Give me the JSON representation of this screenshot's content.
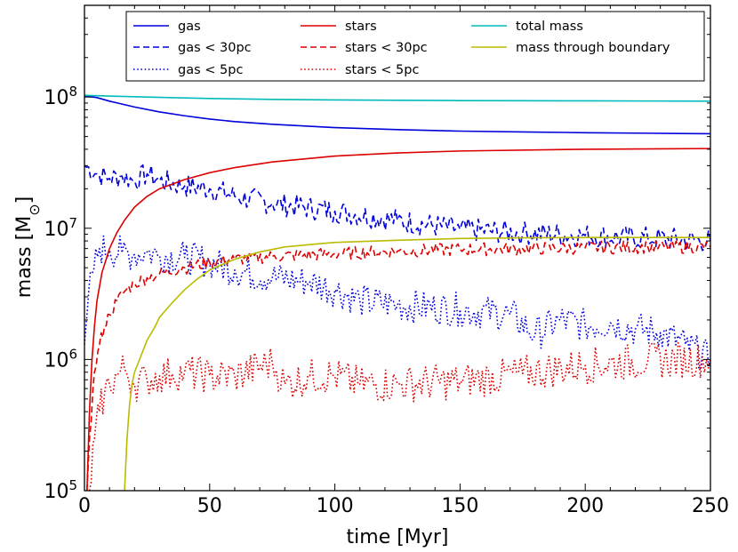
{
  "chart_data": {
    "type": "line",
    "title": "",
    "xlabel": "time [Myr]",
    "ylabel": "mass [M",
    "ylabel_sub": "⊙",
    "ylabel_close": "]",
    "xscale": "linear",
    "yscale": "log",
    "xlim": [
      0,
      250
    ],
    "ylim": [
      100000,
      500000000
    ],
    "x_ticks": [
      {
        "value": 0,
        "label": "0"
      },
      {
        "value": 50,
        "label": "50"
      },
      {
        "value": 100,
        "label": "100"
      },
      {
        "value": 150,
        "label": "150"
      },
      {
        "value": 200,
        "label": "200"
      },
      {
        "value": 250,
        "label": "250"
      }
    ],
    "y_ticks": [
      {
        "value": 100000,
        "base": "10",
        "exp": "5"
      },
      {
        "value": 1000000,
        "base": "10",
        "exp": "6"
      },
      {
        "value": 10000000,
        "base": "10",
        "exp": "7"
      },
      {
        "value": 100000000,
        "base": "10",
        "exp": "8"
      }
    ],
    "legend_position": "top",
    "series": [
      {
        "name": "gas",
        "color": "#0000dd",
        "dash": "solid",
        "noise": 0,
        "x": [
          0,
          5,
          10,
          20,
          30,
          40,
          50,
          60,
          75,
          100,
          125,
          150,
          175,
          200,
          225,
          250
        ],
        "y": [
          102000000.0,
          99000000.0,
          93000000.0,
          84000000.0,
          77000000.0,
          72000000.0,
          68000000.0,
          65000000.0,
          62000000.0,
          58500000.0,
          56500000.0,
          55000000.0,
          54200000.0,
          53500000.0,
          53000000.0,
          52500000.0
        ]
      },
      {
        "name": "gas < 30pc",
        "color": "#0000dd",
        "dash": "dashed",
        "noise": 0.09,
        "x": [
          0,
          5,
          10,
          15,
          20,
          25,
          30,
          40,
          50,
          60,
          75,
          100,
          125,
          150,
          175,
          200,
          225,
          250
        ],
        "y": [
          30000000.0,
          26000000.0,
          24000000.0,
          25000000.0,
          23000000.0,
          26000000.0,
          23000000.0,
          21000000.0,
          20000000.0,
          17500000.0,
          15500000.0,
          13500000.0,
          11500000.0,
          9800000.0,
          9200000.0,
          8800000.0,
          8400000.0,
          8000000.0
        ]
      },
      {
        "name": "gas < 5pc",
        "color": "#0000dd",
        "dash": "dotted",
        "noise": 0.13,
        "x": [
          0,
          1,
          3,
          6,
          10,
          15,
          20,
          25,
          30,
          40,
          50,
          60,
          75,
          90,
          100,
          110,
          125,
          150,
          170,
          180,
          190,
          200,
          210,
          220,
          230,
          240,
          250
        ],
        "y": [
          1300000.0,
          2200000.0,
          4500000.0,
          7000000.0,
          6800000.0,
          6500000.0,
          6300000.0,
          6600000.0,
          6200000.0,
          6000000.0,
          5500000.0,
          4800000.0,
          4200000.0,
          3900000.0,
          3400000.0,
          2800000.0,
          2600000.0,
          2400000.0,
          2200000.0,
          1550000.0,
          2000000.0,
          1800000.0,
          1900000.0,
          1700000.0,
          1600000.0,
          1300000.0,
          1000000.0
        ]
      },
      {
        "name": "stars",
        "color": "#dd0000",
        "dash": "solid",
        "noise": 0,
        "x": [
          1,
          2,
          3,
          4,
          5,
          7,
          10,
          13,
          16,
          20,
          25,
          30,
          40,
          50,
          60,
          75,
          100,
          125,
          150,
          200,
          250
        ],
        "y": [
          100000.0,
          400000.0,
          1000000.0,
          1800000.0,
          2800000.0,
          4600000.0,
          7000000.0,
          9300000.0,
          11500000.0,
          14500000.0,
          17500000.0,
          20000000.0,
          23500000.0,
          26500000.0,
          29000000.0,
          32000000.0,
          35500000.0,
          37500000.0,
          38800000.0,
          40000000.0,
          40500000.0
        ]
      },
      {
        "name": "stars < 30pc",
        "color": "#dd0000",
        "dash": "dashed",
        "noise": 0.05,
        "x": [
          1,
          2,
          4,
          6,
          8,
          10,
          13,
          16,
          20,
          25,
          30,
          40,
          50,
          60,
          75,
          100,
          125,
          150,
          175,
          200,
          225,
          250
        ],
        "y": [
          100000.0,
          250000.0,
          800000.0,
          1300000.0,
          1800000.0,
          2200000.0,
          2800000.0,
          3300000.0,
          3800000.0,
          4200000.0,
          4500000.0,
          5000000.0,
          5500000.0,
          5800000.0,
          6100000.0,
          6400000.0,
          6700000.0,
          6900000.0,
          7000000.0,
          7100000.0,
          7200000.0,
          7200000.0
        ]
      },
      {
        "name": "stars < 5pc",
        "color": "#dd0000",
        "dash": "dotted",
        "noise": 0.14,
        "x": [
          2,
          4,
          6,
          8,
          10,
          13,
          16,
          20,
          25,
          30,
          35,
          40,
          50,
          60,
          75,
          80,
          90,
          100,
          110,
          125,
          150,
          175,
          200,
          225,
          250
        ],
        "y": [
          100000.0,
          250000.0,
          400000.0,
          550000.0,
          650000.0,
          750000.0,
          850000.0,
          650000.0,
          700000.0,
          750000.0,
          780000.0,
          800000.0,
          750000.0,
          750000.0,
          950000.0,
          650000.0,
          750000.0,
          750000.0,
          650000.0,
          650000.0,
          680000.0,
          780000.0,
          900000.0,
          980000.0,
          1000000.0
        ]
      },
      {
        "name": "total mass",
        "color": "#00bbbb",
        "dash": "solid",
        "noise": 0,
        "x": [
          0,
          25,
          50,
          75,
          100,
          125,
          150,
          175,
          200,
          225,
          250
        ],
        "y": [
          103000000.0,
          100000000.0,
          97500000.0,
          96000000.0,
          95000000.0,
          94500000.0,
          94000000.0,
          93800000.0,
          93500000.0,
          93300000.0,
          93000000.0
        ]
      },
      {
        "name": "mass through boundary",
        "color": "#bbbb00",
        "dash": "solid",
        "noise": 0,
        "x": [
          16,
          17,
          18,
          19,
          20,
          22,
          25,
          28,
          30,
          35,
          40,
          45,
          50,
          55,
          60,
          70,
          80,
          90,
          100,
          125,
          150,
          175,
          200,
          250
        ],
        "y": [
          100000.0,
          250000.0,
          450000.0,
          650000.0,
          800000.0,
          1000000.0,
          1400000.0,
          1750000.0,
          2100000.0,
          2700000.0,
          3400000.0,
          4100000.0,
          4800000.0,
          5300000.0,
          5800000.0,
          6600000.0,
          7200000.0,
          7500000.0,
          7800000.0,
          8100000.0,
          8350000.0,
          8450000.0,
          8500000.0,
          8500000.0
        ]
      }
    ]
  }
}
